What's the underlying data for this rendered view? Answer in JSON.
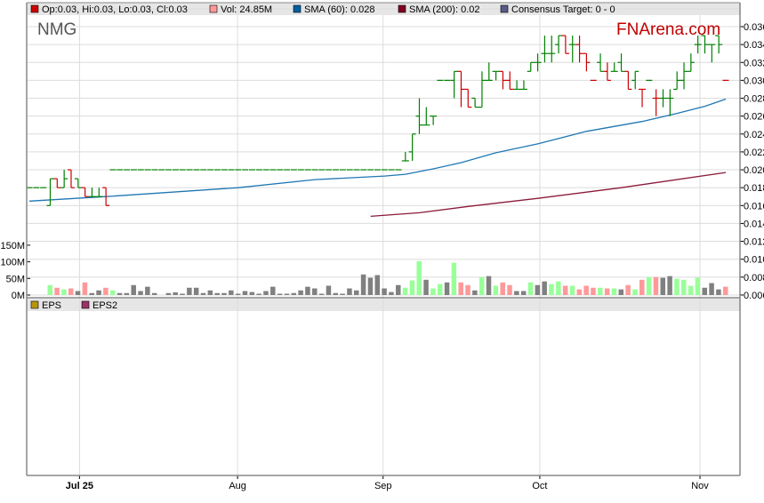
{
  "chart_data": {
    "type": "ohlc",
    "symbol": "NMG",
    "watermark": "FNArena.com",
    "legend": {
      "ohlc": "Op:0.03, Hi:0.03, Lo:0.03, Cl:0.03",
      "volume": "Vol: 24.85M",
      "sma60": "SMA (60): 0.028",
      "sma200": "SMA (200): 0.02",
      "consensus": "Consensus Target: 0 - 0"
    },
    "lower_legend": {
      "eps": "EPS",
      "eps2": "EPS2"
    },
    "colors": {
      "up": "#008000",
      "down": "#cc0000",
      "vol_up": "#99ff99",
      "vol_down": "#ff9999",
      "vol_neutral": "#808080",
      "sma60": "#1f77b4",
      "sma200": "#8b1a3a",
      "legend_ohlc": "#cc0000",
      "legend_vol": "#ff9999",
      "legend_sma60": "#0060a0",
      "legend_sma200": "#800020",
      "legend_consensus": "#5a5a8a",
      "legend_eps": "#b8960c",
      "legend_eps2": "#993366",
      "watermark": "#c00000"
    },
    "price_axis": {
      "min": 0.006,
      "max": 0.036,
      "ticks": [
        "0.036",
        "0.034",
        "0.032",
        "0.030",
        "0.028",
        "0.026",
        "0.024",
        "0.022",
        "0.020",
        "0.018",
        "0.016",
        "0.014",
        "0.012",
        "0.010",
        "0.008",
        "0.006"
      ]
    },
    "volume_axis": {
      "unit": "M",
      "ticks": [
        "150M",
        "100M",
        "50M",
        "0M"
      ],
      "tick_values": [
        150,
        100,
        50,
        0
      ]
    },
    "x_ticks": [
      {
        "label": "Jul 25",
        "bar": 7.2
      },
      {
        "label": "Aug",
        "bar": 29.9
      },
      {
        "label": "Sep",
        "bar": 50.8
      },
      {
        "label": "Oct",
        "bar": 73.3
      },
      {
        "label": "Nov",
        "bar": 96.3
      }
    ],
    "bar_fields": [
      "open",
      "high",
      "low",
      "close",
      "direction",
      "volume_M",
      "volume_color"
    ],
    "bars": [
      [
        0.018,
        0.018,
        0.018,
        0.018,
        "u",
        0,
        "n"
      ],
      [
        0.018,
        0.018,
        0.018,
        0.018,
        "u",
        0,
        "n"
      ],
      [
        0.018,
        0.018,
        0.018,
        0.018,
        "u",
        0,
        "n"
      ],
      [
        0.016,
        0.019,
        0.016,
        0.019,
        "u",
        30,
        "g"
      ],
      [
        0.019,
        0.019,
        0.018,
        0.018,
        "d",
        22,
        "r"
      ],
      [
        0.018,
        0.02,
        0.018,
        0.019,
        "u",
        17,
        "g"
      ],
      [
        0.02,
        0.02,
        0.018,
        0.018,
        "d",
        20,
        "r"
      ],
      [
        0.019,
        0.019,
        0.018,
        0.018,
        "u",
        12,
        "n"
      ],
      [
        0.018,
        0.018,
        0.017,
        0.017,
        "d",
        38,
        "r"
      ],
      [
        0.017,
        0.018,
        0.017,
        0.017,
        "u",
        6,
        "n"
      ],
      [
        0.017,
        0.018,
        0.017,
        0.017,
        "u",
        14,
        "n"
      ],
      [
        0.018,
        0.018,
        0.016,
        0.016,
        "d",
        22,
        "r"
      ],
      [
        0.02,
        0.02,
        0.02,
        0.02,
        "u",
        14,
        "g"
      ],
      [
        0.02,
        0.02,
        0.02,
        0.02,
        "u",
        6,
        "n"
      ],
      [
        0.02,
        0.02,
        0.02,
        0.02,
        "u",
        6,
        "n"
      ],
      [
        0.02,
        0.02,
        0.02,
        0.02,
        "u",
        30,
        "n"
      ],
      [
        0.02,
        0.02,
        0.02,
        0.02,
        "u",
        12,
        "n"
      ],
      [
        0.02,
        0.02,
        0.02,
        0.02,
        "u",
        25,
        "n"
      ],
      [
        0.02,
        0.02,
        0.02,
        0.02,
        "u",
        6,
        "n"
      ],
      [
        0.02,
        0.02,
        0.02,
        0.02,
        "u",
        0,
        "n"
      ],
      [
        0.02,
        0.02,
        0.02,
        0.02,
        "u",
        6,
        "n"
      ],
      [
        0.02,
        0.02,
        0.02,
        0.02,
        "u",
        8,
        "n"
      ],
      [
        0.02,
        0.02,
        0.02,
        0.02,
        "u",
        4,
        "n"
      ],
      [
        0.02,
        0.02,
        0.02,
        0.02,
        "u",
        22,
        "n"
      ],
      [
        0.02,
        0.02,
        0.02,
        0.02,
        "u",
        22,
        "n"
      ],
      [
        0.02,
        0.02,
        0.02,
        0.02,
        "u",
        6,
        "n"
      ],
      [
        0.02,
        0.02,
        0.02,
        0.02,
        "u",
        14,
        "n"
      ],
      [
        0.02,
        0.02,
        0.02,
        0.02,
        "u",
        6,
        "n"
      ],
      [
        0.02,
        0.02,
        0.02,
        0.02,
        "u",
        6,
        "n"
      ],
      [
        0.02,
        0.02,
        0.02,
        0.02,
        "u",
        14,
        "n"
      ],
      [
        0.02,
        0.02,
        0.02,
        0.02,
        "u",
        4,
        "n"
      ],
      [
        0.02,
        0.02,
        0.02,
        0.02,
        "u",
        12,
        "n"
      ],
      [
        0.02,
        0.02,
        0.02,
        0.02,
        "u",
        9,
        "n"
      ],
      [
        0.02,
        0.02,
        0.02,
        0.02,
        "u",
        4,
        "n"
      ],
      [
        0.02,
        0.02,
        0.02,
        0.02,
        "u",
        12,
        "n"
      ],
      [
        0.02,
        0.02,
        0.02,
        0.02,
        "u",
        25,
        "n"
      ],
      [
        0.02,
        0.02,
        0.02,
        0.02,
        "u",
        4,
        "n"
      ],
      [
        0.02,
        0.02,
        0.02,
        0.02,
        "u",
        4,
        "n"
      ],
      [
        0.02,
        0.02,
        0.02,
        0.02,
        "u",
        6,
        "n"
      ],
      [
        0.02,
        0.02,
        0.02,
        0.02,
        "u",
        14,
        "n"
      ],
      [
        0.02,
        0.02,
        0.02,
        0.02,
        "u",
        25,
        "n"
      ],
      [
        0.02,
        0.02,
        0.02,
        0.02,
        "u",
        20,
        "n"
      ],
      [
        0.02,
        0.02,
        0.02,
        0.02,
        "u",
        4,
        "n"
      ],
      [
        0.02,
        0.02,
        0.02,
        0.02,
        "u",
        28,
        "n"
      ],
      [
        0.02,
        0.02,
        0.02,
        0.02,
        "u",
        6,
        "n"
      ],
      [
        0.02,
        0.02,
        0.02,
        0.02,
        "u",
        4,
        "n"
      ],
      [
        0.02,
        0.02,
        0.02,
        0.02,
        "u",
        20,
        "n"
      ],
      [
        0.02,
        0.02,
        0.02,
        0.02,
        "u",
        14,
        "n"
      ],
      [
        0.02,
        0.02,
        0.02,
        0.02,
        "u",
        62,
        "n"
      ],
      [
        0.02,
        0.02,
        0.02,
        0.02,
        "u",
        52,
        "n"
      ],
      [
        0.02,
        0.02,
        0.02,
        0.02,
        "u",
        60,
        "n"
      ],
      [
        0.02,
        0.02,
        0.02,
        0.02,
        "u",
        20,
        "n"
      ],
      [
        0.02,
        0.02,
        0.02,
        0.02,
        "u",
        9,
        "n"
      ],
      [
        0.02,
        0.02,
        0.02,
        0.02,
        "u",
        30,
        "n"
      ],
      [
        0.021,
        0.022,
        0.021,
        0.021,
        "u",
        22,
        "g"
      ],
      [
        0.022,
        0.024,
        0.021,
        0.024,
        "u",
        44,
        "g"
      ],
      [
        0.026,
        0.028,
        0.024,
        0.025,
        "u",
        102,
        "g"
      ],
      [
        0.025,
        0.027,
        0.025,
        0.025,
        "u",
        46,
        "n"
      ],
      [
        0.026,
        0.026,
        0.025,
        0.026,
        "u",
        20,
        "g"
      ],
      [
        0.03,
        0.03,
        0.03,
        0.03,
        "u",
        33,
        "g"
      ],
      [
        0.03,
        0.03,
        0.03,
        0.03,
        "u",
        38,
        "n"
      ],
      [
        0.03,
        0.031,
        0.028,
        0.031,
        "u",
        97,
        "g"
      ],
      [
        0.031,
        0.031,
        0.027,
        0.029,
        "d",
        38,
        "r"
      ],
      [
        0.029,
        0.029,
        0.027,
        0.027,
        "d",
        30,
        "r"
      ],
      [
        0.028,
        0.028,
        0.027,
        0.027,
        "u",
        14,
        "n"
      ],
      [
        0.027,
        0.031,
        0.027,
        0.03,
        "u",
        54,
        "g"
      ],
      [
        0.03,
        0.032,
        0.03,
        0.03,
        "u",
        57,
        "n"
      ],
      [
        0.031,
        0.031,
        0.03,
        0.031,
        "u",
        28,
        "g"
      ],
      [
        0.031,
        0.031,
        0.029,
        0.03,
        "d",
        38,
        "r"
      ],
      [
        0.03,
        0.031,
        0.029,
        0.029,
        "d",
        30,
        "r"
      ],
      [
        0.029,
        0.03,
        0.029,
        0.029,
        "u",
        12,
        "n"
      ],
      [
        0.029,
        0.03,
        0.029,
        0.029,
        "u",
        12,
        "n"
      ],
      [
        0.031,
        0.032,
        0.031,
        0.032,
        "u",
        38,
        "g"
      ],
      [
        0.032,
        0.033,
        0.031,
        0.032,
        "u",
        30,
        "n"
      ],
      [
        0.033,
        0.035,
        0.032,
        0.033,
        "u",
        41,
        "n"
      ],
      [
        0.033,
        0.035,
        0.032,
        0.033,
        "u",
        33,
        "g"
      ],
      [
        0.034,
        0.035,
        0.033,
        0.035,
        "u",
        41,
        "g"
      ],
      [
        0.035,
        0.035,
        0.033,
        0.033,
        "d",
        28,
        "r"
      ],
      [
        0.034,
        0.035,
        0.032,
        0.034,
        "u",
        28,
        "g"
      ],
      [
        0.034,
        0.035,
        0.032,
        0.033,
        "d",
        17,
        "r"
      ],
      [
        0.033,
        0.033,
        0.031,
        0.032,
        "d",
        28,
        "r"
      ],
      [
        0.03,
        0.03,
        0.03,
        0.03,
        "d",
        22,
        "r"
      ],
      [
        0.032,
        0.033,
        0.031,
        0.031,
        "u",
        22,
        "g"
      ],
      [
        0.031,
        0.032,
        0.03,
        0.03,
        "d",
        20,
        "r"
      ],
      [
        0.031,
        0.032,
        0.031,
        0.031,
        "u",
        20,
        "g"
      ],
      [
        0.032,
        0.033,
        0.031,
        0.031,
        "u",
        17,
        "n"
      ],
      [
        0.031,
        0.031,
        0.029,
        0.029,
        "d",
        30,
        "r"
      ],
      [
        0.03,
        0.031,
        0.029,
        0.031,
        "u",
        17,
        "g"
      ],
      [
        0.029,
        0.029,
        0.027,
        0.029,
        "d",
        46,
        "r"
      ],
      [
        0.03,
        0.03,
        0.03,
        0.03,
        "u",
        54,
        "g"
      ],
      [
        0.028,
        0.029,
        0.026,
        0.028,
        "d",
        54,
        "r"
      ],
      [
        0.028,
        0.029,
        0.027,
        0.028,
        "u",
        52,
        "n"
      ],
      [
        0.028,
        0.029,
        0.026,
        0.028,
        "u",
        57,
        "n"
      ],
      [
        0.029,
        0.031,
        0.029,
        0.03,
        "u",
        49,
        "g"
      ],
      [
        0.03,
        0.032,
        0.029,
        0.031,
        "u",
        46,
        "g"
      ],
      [
        0.031,
        0.033,
        0.031,
        0.032,
        "u",
        28,
        "g"
      ],
      [
        0.034,
        0.035,
        0.033,
        0.034,
        "u",
        52,
        "g"
      ],
      [
        0.035,
        0.035,
        0.033,
        0.034,
        "u",
        22,
        "n"
      ],
      [
        0.034,
        0.034,
        0.032,
        0.034,
        "u",
        36,
        "n"
      ],
      [
        0.035,
        0.035,
        0.033,
        0.034,
        "u",
        17,
        "n"
      ],
      [
        0.03,
        0.03,
        0.03,
        0.03,
        "d",
        25,
        "r"
      ]
    ],
    "sma60_points": [
      [
        0,
        0.0165
      ],
      [
        11,
        0.017
      ],
      [
        30,
        0.018
      ],
      [
        41,
        0.0189
      ],
      [
        51,
        0.0193
      ],
      [
        54,
        0.0195
      ],
      [
        58,
        0.0201
      ],
      [
        62,
        0.0208
      ],
      [
        67,
        0.0219
      ],
      [
        73,
        0.0229
      ],
      [
        80,
        0.0243
      ],
      [
        88,
        0.0254
      ],
      [
        93,
        0.0263
      ],
      [
        97,
        0.0271
      ],
      [
        100,
        0.0279
      ]
    ],
    "sma200_points": [
      [
        49,
        0.0148
      ],
      [
        56,
        0.0152
      ],
      [
        63,
        0.0159
      ],
      [
        73,
        0.0168
      ],
      [
        85,
        0.018
      ],
      [
        100,
        0.0197
      ]
    ],
    "grid": true
  }
}
